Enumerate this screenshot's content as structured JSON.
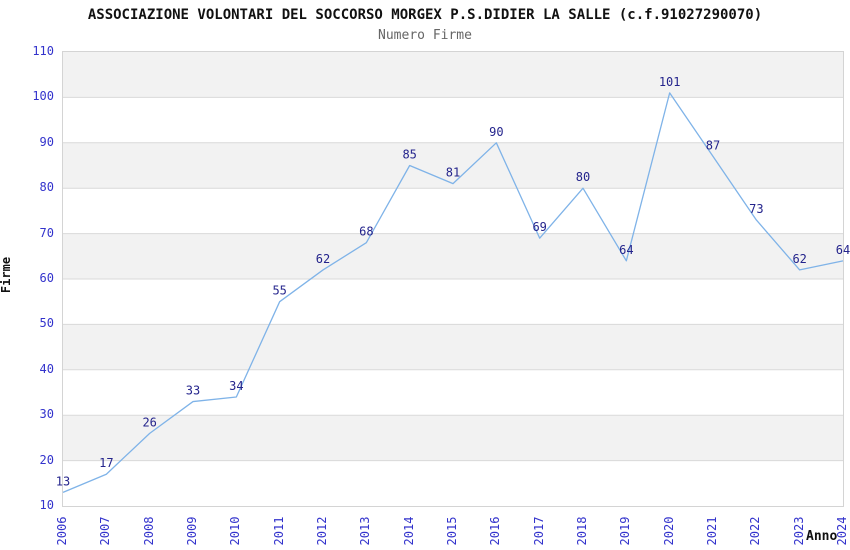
{
  "header": {
    "title": "ASSOCIAZIONE VOLONTARI DEL SOCCORSO MORGEX P.S.DIDIER LA SALLE (c.f.91027290070)",
    "subtitle": "Numero Firme"
  },
  "chart_data": {
    "type": "line",
    "title": "Numero Firme",
    "categories": [
      "2006",
      "2007",
      "2008",
      "2009",
      "2010",
      "2011",
      "2012",
      "2013",
      "2014",
      "2015",
      "2016",
      "2017",
      "2018",
      "2019",
      "2020",
      "2021",
      "2022",
      "2023",
      "2024"
    ],
    "values": [
      13,
      17,
      26,
      33,
      34,
      55,
      62,
      68,
      85,
      81,
      90,
      69,
      80,
      64,
      101,
      87,
      73,
      62,
      64
    ],
    "xlabel": "Anno",
    "ylabel": "Firme",
    "ylim": [
      10,
      110
    ],
    "ytick_step": 10,
    "grid": "horizontal-bands",
    "legend": "none",
    "colors": {
      "line": "#7fb3e8",
      "tick_label": "#3333cc",
      "point_label": "#24248c",
      "band_gray": "#f2f2f2",
      "band_white": "#ffffff",
      "gridline": "#d9d9d9",
      "title": "#111111",
      "subtitle": "#666666"
    }
  }
}
